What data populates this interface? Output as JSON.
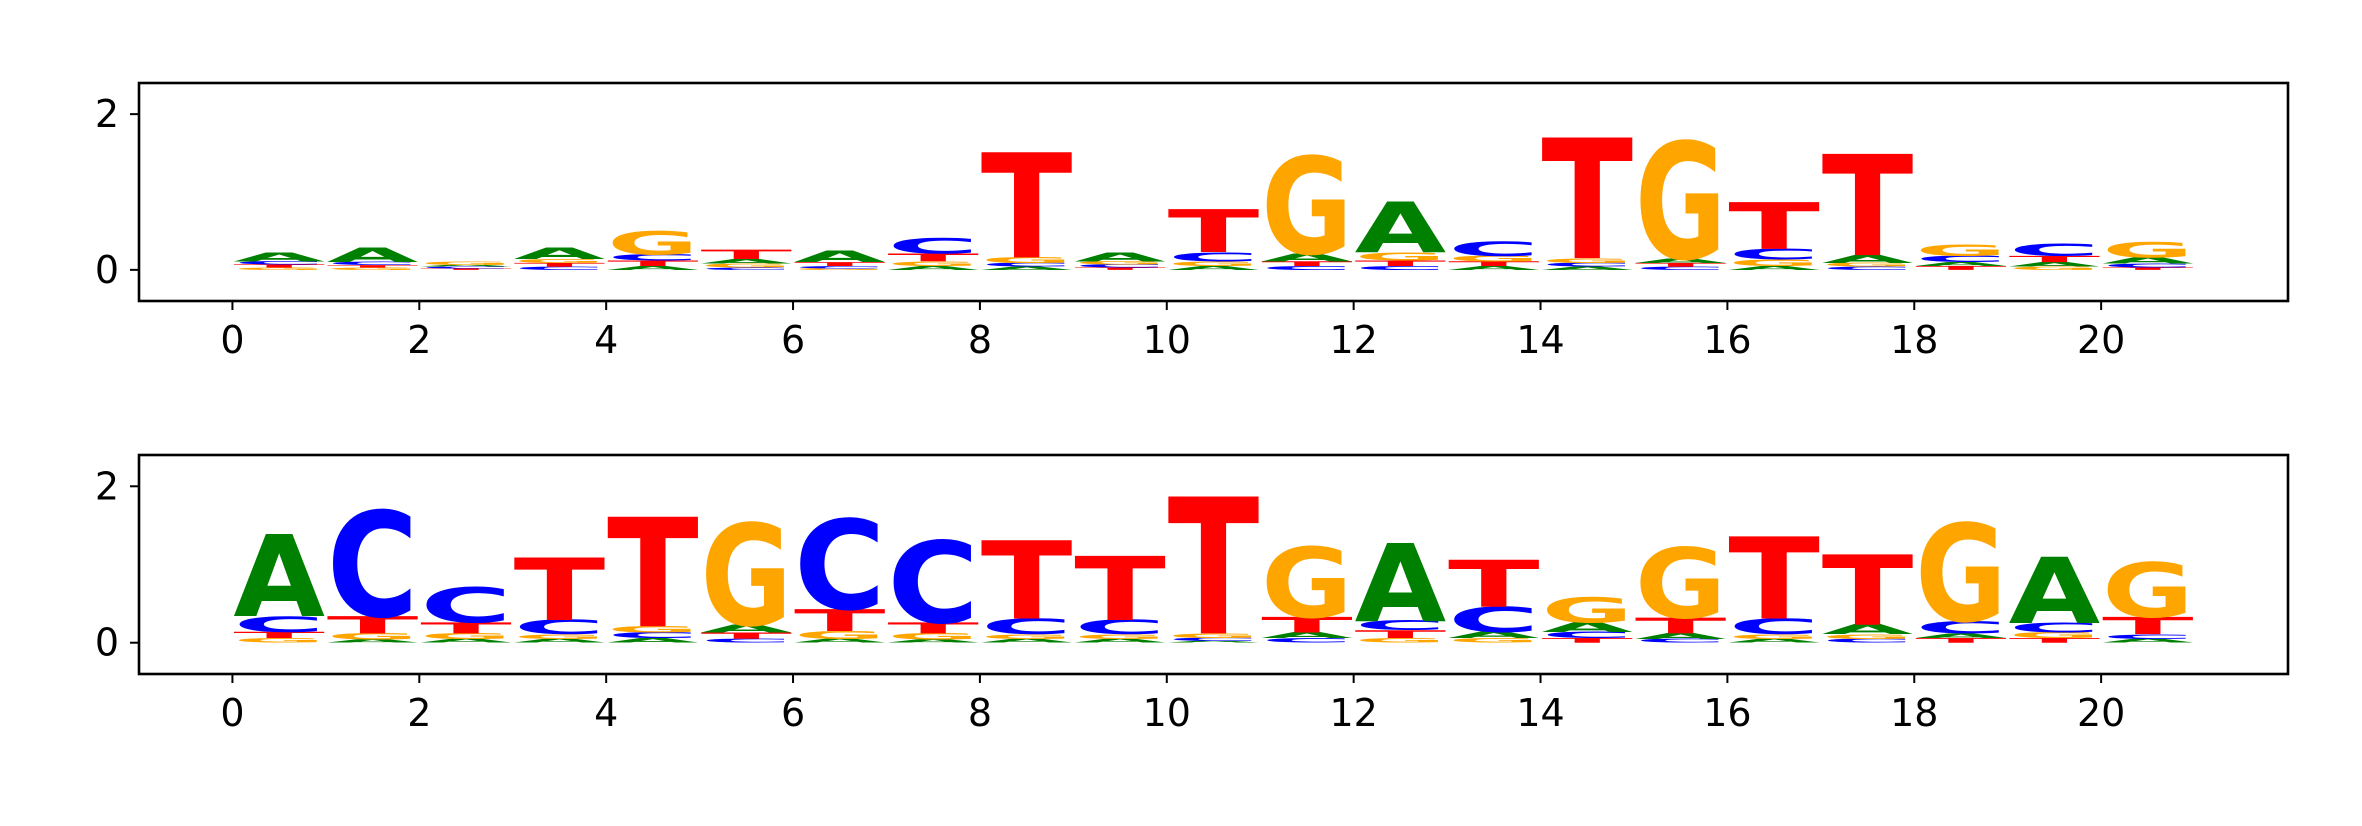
{
  "chart_data": [
    {
      "type": "sequence-logo",
      "title": "",
      "xlabel": "",
      "ylabel": "",
      "xlim": [
        -1,
        22
      ],
      "ylim": [
        -0.4,
        2.4
      ],
      "xticks": [
        0,
        2,
        4,
        6,
        8,
        10,
        12,
        14,
        16,
        18,
        20
      ],
      "yticks": [
        0,
        2
      ],
      "grid": false,
      "colors": {
        "A": "#008000",
        "C": "#0000ff",
        "G": "#ffa500",
        "T": "#ff0000"
      },
      "positions": [
        {
          "x": 0,
          "letters": [
            [
              "G",
              0.03
            ],
            [
              "T",
              0.04
            ],
            [
              "C",
              0.04
            ],
            [
              "A",
              0.12
            ]
          ]
        },
        {
          "x": 1,
          "letters": [
            [
              "G",
              0.03
            ],
            [
              "T",
              0.03
            ],
            [
              "C",
              0.04
            ],
            [
              "A",
              0.18
            ]
          ]
        },
        {
          "x": 2,
          "letters": [
            [
              "T",
              0.02
            ],
            [
              "C",
              0.02
            ],
            [
              "A",
              0.02
            ],
            [
              "G",
              0.04
            ]
          ]
        },
        {
          "x": 3,
          "letters": [
            [
              "C",
              0.04
            ],
            [
              "T",
              0.05
            ],
            [
              "G",
              0.05
            ],
            [
              "A",
              0.15
            ]
          ]
        },
        {
          "x": 4,
          "letters": [
            [
              "A",
              0.05
            ],
            [
              "T",
              0.07
            ],
            [
              "C",
              0.08
            ],
            [
              "G",
              0.3
            ]
          ]
        },
        {
          "x": 5,
          "letters": [
            [
              "C",
              0.03
            ],
            [
              "G",
              0.05
            ],
            [
              "A",
              0.06
            ],
            [
              "T",
              0.12
            ]
          ]
        },
        {
          "x": 6,
          "letters": [
            [
              "G",
              0.02
            ],
            [
              "C",
              0.03
            ],
            [
              "T",
              0.05
            ],
            [
              "A",
              0.15
            ]
          ]
        },
        {
          "x": 7,
          "letters": [
            [
              "A",
              0.05
            ],
            [
              "G",
              0.06
            ],
            [
              "T",
              0.1
            ],
            [
              "C",
              0.2
            ]
          ]
        },
        {
          "x": 8,
          "letters": [
            [
              "A",
              0.04
            ],
            [
              "C",
              0.05
            ],
            [
              "G",
              0.07
            ],
            [
              "T",
              1.35
            ]
          ]
        },
        {
          "x": 9,
          "letters": [
            [
              "T",
              0.03
            ],
            [
              "C",
              0.04
            ],
            [
              "G",
              0.04
            ],
            [
              "A",
              0.12
            ]
          ]
        },
        {
          "x": 10,
          "letters": [
            [
              "A",
              0.05
            ],
            [
              "G",
              0.06
            ],
            [
              "C",
              0.12
            ],
            [
              "T",
              0.55
            ]
          ]
        },
        {
          "x": 11,
          "letters": [
            [
              "C",
              0.05
            ],
            [
              "T",
              0.06
            ],
            [
              "A",
              0.1
            ],
            [
              "G",
              1.25
            ]
          ]
        },
        {
          "x": 12,
          "letters": [
            [
              "C",
              0.05
            ],
            [
              "T",
              0.07
            ],
            [
              "G",
              0.1
            ],
            [
              "A",
              0.65
            ]
          ]
        },
        {
          "x": 13,
          "letters": [
            [
              "A",
              0.05
            ],
            [
              "T",
              0.06
            ],
            [
              "G",
              0.07
            ],
            [
              "C",
              0.18
            ]
          ]
        },
        {
          "x": 14,
          "letters": [
            [
              "A",
              0.04
            ],
            [
              "C",
              0.05
            ],
            [
              "G",
              0.06
            ],
            [
              "T",
              1.55
            ]
          ]
        },
        {
          "x": 15,
          "letters": [
            [
              "C",
              0.04
            ],
            [
              "T",
              0.05
            ],
            [
              "A",
              0.06
            ],
            [
              "G",
              1.5
            ]
          ]
        },
        {
          "x": 16,
          "letters": [
            [
              "A",
              0.05
            ],
            [
              "G",
              0.08
            ],
            [
              "C",
              0.14
            ],
            [
              "T",
              0.6
            ]
          ]
        },
        {
          "x": 17,
          "letters": [
            [
              "C",
              0.04
            ],
            [
              "G",
              0.05
            ],
            [
              "A",
              0.1
            ],
            [
              "T",
              1.3
            ]
          ]
        },
        {
          "x": 18,
          "letters": [
            [
              "T",
              0.05
            ],
            [
              "A",
              0.05
            ],
            [
              "C",
              0.08
            ],
            [
              "G",
              0.15
            ]
          ]
        },
        {
          "x": 19,
          "letters": [
            [
              "G",
              0.04
            ],
            [
              "A",
              0.06
            ],
            [
              "T",
              0.08
            ],
            [
              "C",
              0.16
            ]
          ]
        },
        {
          "x": 20,
          "letters": [
            [
              "T",
              0.03
            ],
            [
              "C",
              0.05
            ],
            [
              "A",
              0.08
            ],
            [
              "G",
              0.2
            ]
          ]
        }
      ]
    },
    {
      "type": "sequence-logo",
      "title": "",
      "xlabel": "",
      "ylabel": "",
      "xlim": [
        -1,
        22
      ],
      "ylim": [
        -0.4,
        2.4
      ],
      "xticks": [
        0,
        2,
        4,
        6,
        8,
        10,
        12,
        14,
        16,
        18,
        20
      ],
      "yticks": [
        0,
        2
      ],
      "grid": false,
      "colors": {
        "A": "#008000",
        "C": "#0000ff",
        "G": "#ffa500",
        "T": "#ff0000"
      },
      "positions": [
        {
          "x": 0,
          "letters": [
            [
              "G",
              0.06
            ],
            [
              "T",
              0.08
            ],
            [
              "C",
              0.2
            ],
            [
              "A",
              1.05
            ]
          ]
        },
        {
          "x": 1,
          "letters": [
            [
              "A",
              0.04
            ],
            [
              "G",
              0.08
            ],
            [
              "T",
              0.22
            ],
            [
              "C",
              1.35
            ]
          ]
        },
        {
          "x": 2,
          "letters": [
            [
              "A",
              0.05
            ],
            [
              "G",
              0.07
            ],
            [
              "T",
              0.14
            ],
            [
              "C",
              0.45
            ]
          ]
        },
        {
          "x": 3,
          "letters": [
            [
              "A",
              0.05
            ],
            [
              "G",
              0.06
            ],
            [
              "C",
              0.18
            ],
            [
              "T",
              0.8
            ]
          ]
        },
        {
          "x": 4,
          "letters": [
            [
              "A",
              0.06
            ],
            [
              "C",
              0.07
            ],
            [
              "G",
              0.08
            ],
            [
              "T",
              1.4
            ]
          ]
        },
        {
          "x": 5,
          "letters": [
            [
              "C",
              0.05
            ],
            [
              "T",
              0.08
            ],
            [
              "A",
              0.1
            ],
            [
              "G",
              1.3
            ]
          ]
        },
        {
          "x": 6,
          "letters": [
            [
              "A",
              0.05
            ],
            [
              "G",
              0.1
            ],
            [
              "T",
              0.28
            ],
            [
              "C",
              1.15
            ]
          ]
        },
        {
          "x": 7,
          "letters": [
            [
              "A",
              0.04
            ],
            [
              "G",
              0.08
            ],
            [
              "T",
              0.14
            ],
            [
              "C",
              1.05
            ]
          ]
        },
        {
          "x": 8,
          "letters": [
            [
              "A",
              0.05
            ],
            [
              "G",
              0.06
            ],
            [
              "C",
              0.2
            ],
            [
              "T",
              1.0
            ]
          ]
        },
        {
          "x": 9,
          "letters": [
            [
              "A",
              0.05
            ],
            [
              "G",
              0.06
            ],
            [
              "C",
              0.18
            ],
            [
              "T",
              0.82
            ]
          ]
        },
        {
          "x": 10,
          "letters": [
            [
              "A",
              0.02
            ],
            [
              "C",
              0.04
            ],
            [
              "G",
              0.06
            ],
            [
              "T",
              1.75
            ]
          ]
        },
        {
          "x": 11,
          "letters": [
            [
              "C",
              0.06
            ],
            [
              "A",
              0.07
            ],
            [
              "T",
              0.2
            ],
            [
              "G",
              0.9
            ]
          ]
        },
        {
          "x": 12,
          "letters": [
            [
              "G",
              0.06
            ],
            [
              "T",
              0.1
            ],
            [
              "C",
              0.12
            ],
            [
              "A",
              1.0
            ]
          ]
        },
        {
          "x": 13,
          "letters": [
            [
              "G",
              0.06
            ],
            [
              "A",
              0.08
            ],
            [
              "C",
              0.32
            ],
            [
              "T",
              0.6
            ]
          ]
        },
        {
          "x": 14,
          "letters": [
            [
              "T",
              0.06
            ],
            [
              "C",
              0.08
            ],
            [
              "A",
              0.12
            ],
            [
              "G",
              0.32
            ]
          ]
        },
        {
          "x": 15,
          "letters": [
            [
              "C",
              0.05
            ],
            [
              "A",
              0.07
            ],
            [
              "T",
              0.2
            ],
            [
              "G",
              0.9
            ]
          ]
        },
        {
          "x": 16,
          "letters": [
            [
              "A",
              0.05
            ],
            [
              "G",
              0.06
            ],
            [
              "C",
              0.2
            ],
            [
              "T",
              1.05
            ]
          ]
        },
        {
          "x": 17,
          "letters": [
            [
              "C",
              0.05
            ],
            [
              "G",
              0.06
            ],
            [
              "A",
              0.12
            ],
            [
              "T",
              0.9
            ]
          ]
        },
        {
          "x": 18,
          "letters": [
            [
              "T",
              0.06
            ],
            [
              "A",
              0.06
            ],
            [
              "C",
              0.16
            ],
            [
              "G",
              1.25
            ]
          ]
        },
        {
          "x": 19,
          "letters": [
            [
              "T",
              0.06
            ],
            [
              "G",
              0.07
            ],
            [
              "C",
              0.12
            ],
            [
              "A",
              0.85
            ]
          ]
        },
        {
          "x": 20,
          "letters": [
            [
              "A",
              0.05
            ],
            [
              "C",
              0.06
            ],
            [
              "T",
              0.22
            ],
            [
              "G",
              0.7
            ]
          ]
        }
      ]
    }
  ]
}
